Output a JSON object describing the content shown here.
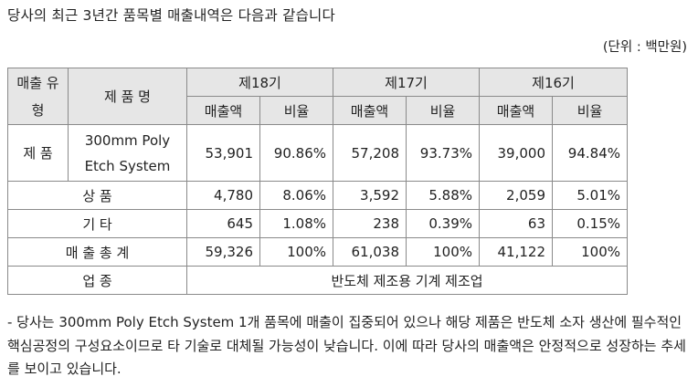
{
  "heading": "당사의 최근 3년간 품목별 매출내역은 다음과 같습니다",
  "unit": "(단위 : 백만원)",
  "table": {
    "h_type": "매출 유형",
    "h_name": "제 품 명",
    "years": [
      "제18기",
      "제17기",
      "제16기"
    ],
    "sub": [
      "매출액",
      "비율",
      "매출액",
      "비율",
      "매출액",
      "비율"
    ],
    "row_product": {
      "type": "제 품",
      "name": "300mm Poly Etch System",
      "values": [
        "53,901",
        "90.86%",
        "57,208",
        "93.73%",
        "39,000",
        "94.84%"
      ]
    },
    "row_goods": {
      "label": "상 품",
      "values": [
        "4,780",
        "8.06%",
        "3,592",
        "5.88%",
        "2,059",
        "5.01%"
      ]
    },
    "row_other": {
      "label": "기 타",
      "values": [
        "645",
        "1.08%",
        "238",
        "0.39%",
        "63",
        "0.15%"
      ]
    },
    "row_total": {
      "label": "매 출 총 계",
      "values": [
        "59,326",
        "100%",
        "61,038",
        "100%",
        "41,122",
        "100%"
      ]
    },
    "row_industry": {
      "label": "업 종",
      "value": "반도체 제조용 기계 제조업"
    }
  },
  "note": "- 당사는 300mm Poly Etch System 1개 품목에 매출이 집중되어 있으나 해당 제품은 반도체 소자 생산에 필수적인 핵심공정의 구성요소이므로 타 기술로  대체될 가능성이 낮습니다. 이에 따라 당사의 매출액은 안정적으로 성장하는 추세를 보이고 있습니다."
}
